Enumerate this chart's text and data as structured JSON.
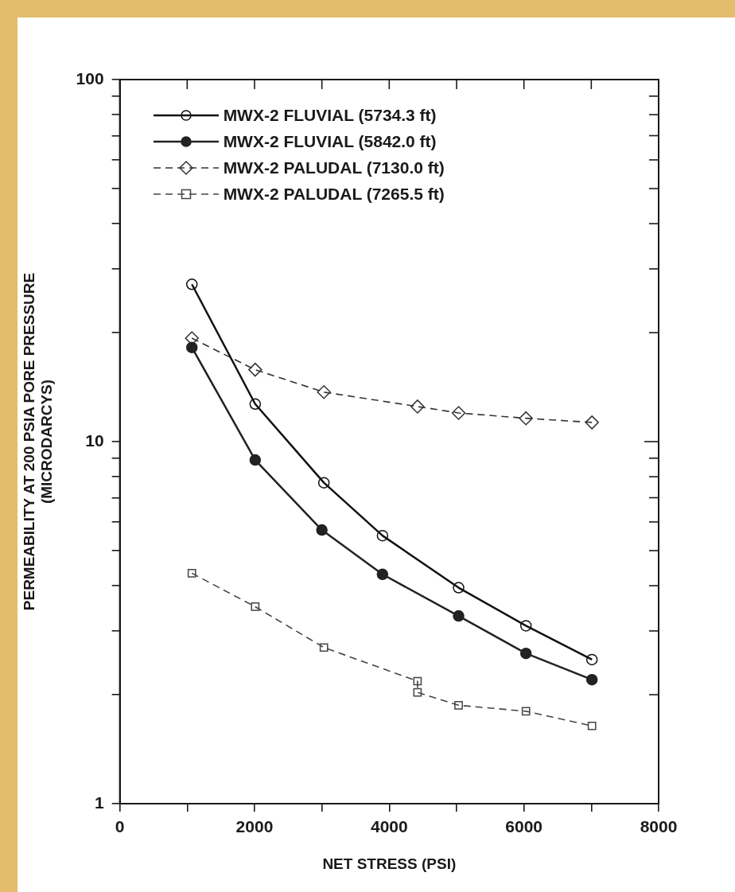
{
  "chart_data": {
    "type": "line",
    "xlabel": "NET STRESS (PSI)",
    "ylabel": "PERMEABILITY AT 200 PSIA PORE PRESSURE\n(MICRODARCYS)",
    "log": "y",
    "legend": "top left",
    "xlim": [
      0,
      8000
    ],
    "xticks": [
      0,
      {
        "value": 1000,
        "label": null
      },
      2000,
      {
        "value": 3000,
        "label": null
      },
      4000,
      {
        "value": 5000,
        "label": null
      },
      6000,
      {
        "value": 7000,
        "label": null
      },
      8000
    ],
    "ylim": [
      1,
      100
    ],
    "yticks": [
      1,
      {
        "value": 2,
        "label": null
      },
      {
        "value": 3,
        "label": null
      },
      {
        "value": 4,
        "label": null
      },
      {
        "value": 5,
        "label": null
      },
      {
        "value": 6,
        "label": null
      },
      {
        "value": 7,
        "label": null
      },
      {
        "value": 8,
        "label": null
      },
      {
        "value": 9,
        "label": null
      },
      10,
      {
        "value": 20,
        "label": null
      },
      {
        "value": 30,
        "label": null
      },
      {
        "value": 40,
        "label": null
      },
      {
        "value": 50,
        "label": null
      },
      {
        "value": 60,
        "label": null
      },
      {
        "value": 70,
        "label": null
      },
      {
        "value": 80,
        "label": null
      },
      {
        "value": 90,
        "label": null
      },
      100
    ],
    "series": [
      {
        "name": "MWX-2 FLUVIAL (5734.3 ft)",
        "color": "#111111",
        "marker": "circle",
        "line_style": "solid",
        "x": [
          1070,
          2010,
          3030,
          3900,
          5030,
          6030,
          7010
        ],
        "values": [
          27.2,
          12.7,
          7.7,
          5.5,
          3.95,
          3.1,
          2.5
        ]
      },
      {
        "name": "MWX-2 FLUVIAL (5842.0 ft)",
        "color": "#222222",
        "colors": [
          "#222222",
          "#222222",
          "#222222",
          "#222222",
          "#222222",
          "#222222",
          "#222222"
        ],
        "marker": "circle",
        "line_style": "solid",
        "x": [
          1070,
          2010,
          3000,
          3900,
          5030,
          6030,
          7010
        ],
        "values": [
          18.2,
          8.9,
          5.7,
          4.3,
          3.3,
          2.6,
          2.2
        ]
      },
      {
        "name": "MWX-2 PALUDAL (7130.0 ft)",
        "color": "#333333",
        "marker": "diamond",
        "line_style": "dashed",
        "x": [
          1070,
          2010,
          3030,
          4420,
          5030,
          6030,
          7010
        ],
        "values": [
          19.3,
          15.8,
          13.7,
          12.5,
          12.0,
          11.6,
          11.3
        ]
      },
      {
        "name": "MWX-2 PALUDAL (7265.5 ft)",
        "color": "#444444",
        "marker": "square",
        "line_style": "dashed",
        "x": [
          1070,
          2010,
          3030,
          4420,
          4420,
          5030,
          6030,
          7010
        ],
        "values": [
          4.33,
          3.5,
          2.7,
          2.18,
          2.03,
          1.87,
          1.8,
          1.64
        ]
      }
    ]
  }
}
